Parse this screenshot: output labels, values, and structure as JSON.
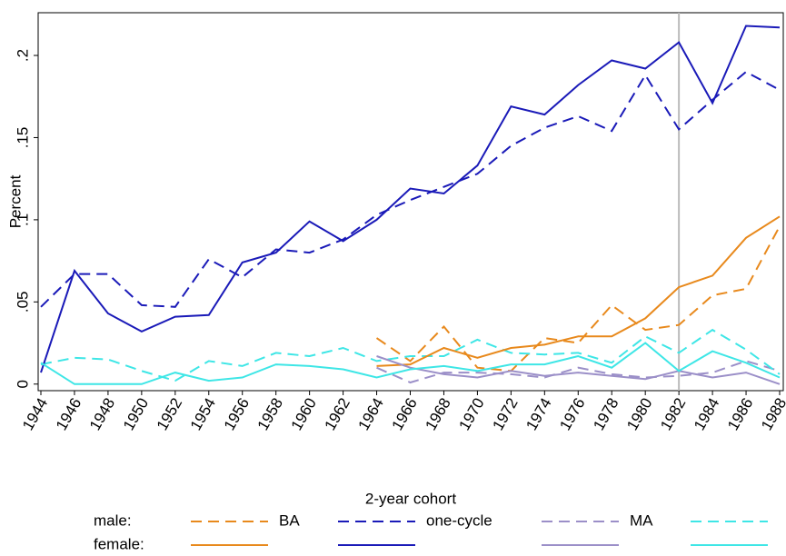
{
  "chart_data": {
    "type": "line",
    "xlabel": "2-year cohort",
    "ylabel": "Percent",
    "x": [
      1944,
      1946,
      1948,
      1950,
      1952,
      1954,
      1956,
      1958,
      1960,
      1962,
      1964,
      1966,
      1968,
      1970,
      1972,
      1974,
      1976,
      1978,
      1980,
      1982,
      1984,
      1986,
      1988
    ],
    "xlim": [
      1944,
      1988
    ],
    "xticks": [
      1944,
      1946,
      1948,
      1950,
      1952,
      1954,
      1956,
      1958,
      1960,
      1962,
      1964,
      1966,
      1968,
      1970,
      1972,
      1974,
      1976,
      1978,
      1980,
      1982,
      1984,
      1986,
      1988
    ],
    "ylim": [
      -0.004,
      0.226
    ],
    "yticks": [
      0,
      {
        "value": 0.05,
        "label": ".05"
      },
      {
        "value": 0.1,
        "label": ".1"
      },
      {
        "value": 0.15,
        "label": ".15"
      },
      {
        "value": 0.2,
        "label": ".2"
      }
    ],
    "vline": {
      "x": 1982,
      "color": "#bbbbbb"
    },
    "legend": {
      "rows": [
        "male:",
        "female:"
      ],
      "labels": [
        "BA",
        "one-cycle",
        "MA",
        null
      ]
    },
    "series": [
      {
        "color": "#e8891c",
        "dashed": true,
        "values": [
          null,
          null,
          null,
          null,
          null,
          null,
          null,
          null,
          null,
          null,
          0.028,
          0.014,
          0.035,
          0.01,
          0.008,
          0.028,
          0.025,
          0.048,
          0.033,
          0.036,
          0.054,
          0.058,
          0.096
        ]
      },
      {
        "color": "#1a1ab8",
        "dashed": true,
        "values": [
          0.047,
          0.067,
          0.067,
          0.048,
          0.047,
          0.076,
          0.065,
          0.082,
          0.08,
          0.088,
          0.103,
          0.112,
          0.12,
          0.128,
          0.145,
          0.156,
          0.163,
          0.154,
          0.188,
          0.155,
          0.173,
          0.19,
          0.179
        ]
      },
      {
        "color": "#9b8fc8",
        "dashed": true,
        "values": [
          null,
          null,
          null,
          null,
          null,
          null,
          null,
          null,
          null,
          null,
          0.01,
          0.001,
          0.007,
          0.007,
          0.006,
          0.004,
          0.01,
          0.006,
          0.004,
          0.005,
          0.007,
          0.014,
          0.008
        ]
      },
      {
        "color": "#3ee6e6",
        "dashed": true,
        "values": [
          0.012,
          0.016,
          0.015,
          0.008,
          0.002,
          0.014,
          0.011,
          0.019,
          0.017,
          0.022,
          0.014,
          0.017,
          0.017,
          0.027,
          0.019,
          0.018,
          0.019,
          0.013,
          0.029,
          0.019,
          0.033,
          0.021,
          0.006
        ]
      },
      {
        "color": "#e8891c",
        "dashed": false,
        "values": [
          null,
          null,
          null,
          null,
          null,
          null,
          null,
          null,
          null,
          null,
          0.011,
          0.012,
          0.022,
          0.016,
          0.022,
          0.024,
          0.029,
          0.029,
          0.04,
          0.059,
          0.066,
          0.089,
          0.102
        ]
      },
      {
        "color": "#1a1ab8",
        "dashed": false,
        "values": [
          0.007,
          0.069,
          0.043,
          0.032,
          0.041,
          0.042,
          0.074,
          0.08,
          0.099,
          0.087,
          0.1,
          0.119,
          0.116,
          0.133,
          0.169,
          0.164,
          0.182,
          0.197,
          0.192,
          0.208,
          0.171,
          0.218,
          0.217
        ]
      },
      {
        "color": "#9b8fc8",
        "dashed": false,
        "values": [
          null,
          null,
          null,
          null,
          null,
          null,
          null,
          null,
          null,
          null,
          0.017,
          0.01,
          0.006,
          0.004,
          0.008,
          0.005,
          0.007,
          0.005,
          0.003,
          0.008,
          0.004,
          0.007,
          0.0
        ]
      },
      {
        "color": "#3ee6e6",
        "dashed": false,
        "values": [
          0.013,
          0.0,
          0.0,
          0.0,
          0.007,
          0.002,
          0.004,
          0.012,
          0.011,
          0.009,
          0.004,
          0.009,
          0.011,
          0.008,
          0.012,
          0.012,
          0.017,
          0.01,
          0.025,
          0.008,
          0.02,
          0.013,
          0.004
        ]
      }
    ]
  }
}
